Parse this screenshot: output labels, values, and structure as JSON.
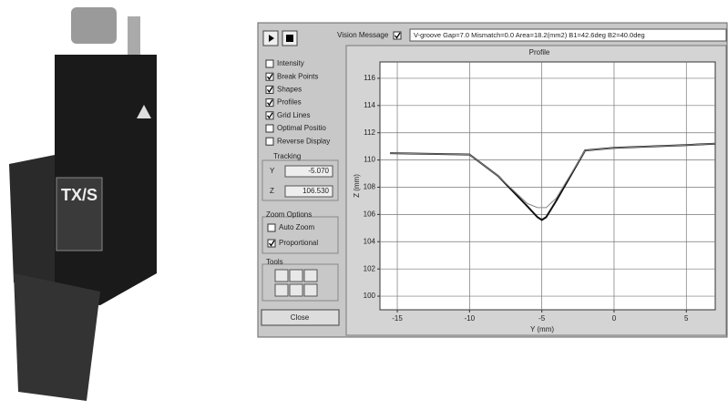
{
  "photo": {
    "label": "TX/S"
  },
  "toolbar": {
    "vision_message_label": "Vision Message",
    "vision_message_checked": true,
    "message": "V-groove Gap=7.0 Mismatch=0.0 Area=18.2(mm2) B1=42.6deg B2=40.0deg"
  },
  "options": [
    {
      "label": "Intensity",
      "checked": false
    },
    {
      "label": "Break Points",
      "checked": true
    },
    {
      "label": "Shapes",
      "checked": true
    },
    {
      "label": "Profiles",
      "checked": true
    },
    {
      "label": "Grid Lines",
      "checked": true
    },
    {
      "label": "Optimal Positio",
      "checked": false
    },
    {
      "label": "Reverse Display",
      "checked": false
    }
  ],
  "tracking": {
    "title": "Tracking",
    "fields": [
      {
        "label": "Y",
        "value": "-5.070"
      },
      {
        "label": "Z",
        "value": "106.530"
      }
    ]
  },
  "zoom": {
    "title": "Zoom Options",
    "options": [
      {
        "label": "Auto Zoom",
        "checked": false
      },
      {
        "label": "Proportional",
        "checked": true
      }
    ]
  },
  "tools": {
    "title": "Tools"
  },
  "close_button": "Close",
  "chart_data": {
    "type": "line",
    "title": "Profile",
    "xlabel": "Y (mm)",
    "ylabel": "Z (mm)",
    "x": [
      -15.5,
      -10,
      -8,
      -6,
      -5.3,
      -5,
      -4.7,
      -4,
      -2,
      0,
      5,
      7
    ],
    "series": [
      {
        "color": "#111111",
        "values": [
          110.5,
          110.4,
          108.8,
          106.6,
          105.8,
          105.6,
          105.8,
          107,
          110.7,
          110.9,
          111.1,
          111.2
        ]
      },
      {
        "color": "#888888",
        "values": [
          110.5,
          110.4,
          108.8,
          106.8,
          106.5,
          106.5,
          106.5,
          107.2,
          110.7,
          110.9,
          111.1,
          111.2
        ]
      }
    ],
    "xlim": [
      -16.2,
      7
    ],
    "ylim": [
      99,
      117.2
    ],
    "xticks": [
      -15,
      -10,
      -5,
      0,
      5
    ],
    "yticks": [
      100,
      102,
      104,
      106,
      108,
      110,
      112,
      114,
      116
    ],
    "grid": true
  }
}
